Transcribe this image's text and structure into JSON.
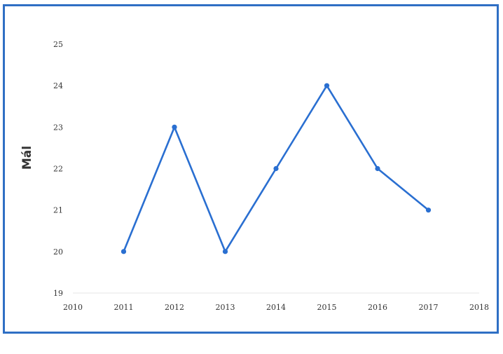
{
  "chart_data": {
    "type": "line",
    "title": "",
    "xlabel": "",
    "ylabel": "Mál",
    "x": [
      2011,
      2012,
      2013,
      2014,
      2015,
      2016,
      2017
    ],
    "series": [
      {
        "values": [
          20,
          23,
          20,
          22,
          24,
          22,
          21
        ]
      }
    ],
    "xlim": [
      2010,
      2018
    ],
    "ylim": [
      19,
      25
    ],
    "xticks": [
      "2010",
      "2011",
      "2012",
      "2013",
      "2014",
      "2015",
      "2016",
      "2017",
      "2018"
    ],
    "yticks": [
      "19",
      "20",
      "21",
      "22",
      "23",
      "24",
      "25"
    ],
    "grid": false,
    "legend": "none",
    "line_color": "#2a6fd1",
    "frame_color": "#2f6fc4"
  }
}
